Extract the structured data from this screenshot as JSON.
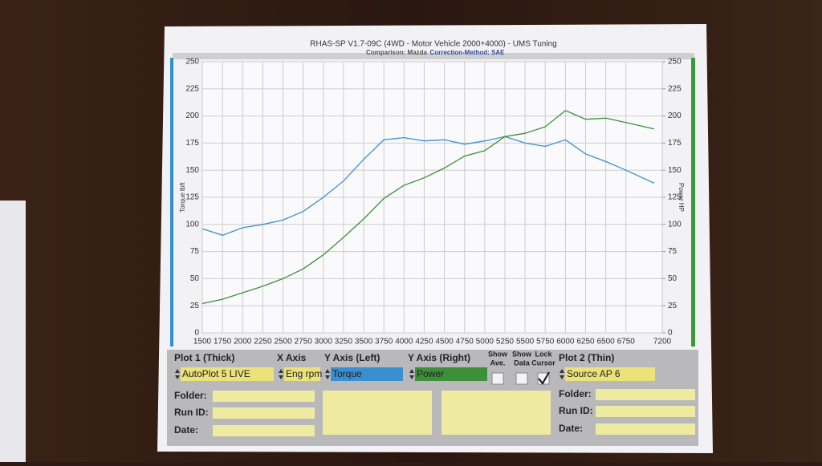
{
  "chart_data": {
    "type": "line",
    "title": "RHAS-SP V1.7-09C  (4WD - Motor Vehicle 2000+4000) - UMS Tuning",
    "annotations": [
      "Comparison: Mazda",
      "Correction-Method: SAE"
    ],
    "ylabel": "Torque lbft",
    "y2label": "Power HP",
    "x": [
      1500,
      1750,
      2000,
      2250,
      2500,
      2750,
      3000,
      3250,
      3500,
      3750,
      4000,
      4250,
      4500,
      4750,
      5000,
      5250,
      5500,
      5750,
      6000,
      6250,
      6500,
      6750,
      7100
    ],
    "series": [
      {
        "name": "Torque",
        "color": "#3a8fd0",
        "values": [
          96,
          90,
          97,
          100,
          104,
          112,
          125,
          140,
          160,
          178,
          180,
          177,
          178,
          174,
          177,
          181,
          175,
          172,
          178,
          165,
          158,
          150,
          138
        ]
      },
      {
        "name": "Power",
        "color": "#3d8f3a",
        "axis": "y2",
        "values": [
          27,
          31,
          37,
          43,
          50,
          59,
          72,
          88,
          105,
          124,
          136,
          143,
          152,
          163,
          168,
          181,
          184,
          190,
          205,
          197,
          198,
          194,
          188
        ]
      }
    ],
    "xlim": [
      1500,
      7200
    ],
    "xticks": [
      1500,
      1750,
      2000,
      2250,
      2500,
      2750,
      3000,
      3250,
      3500,
      3750,
      4000,
      4250,
      4500,
      4750,
      5000,
      5250,
      5500,
      5750,
      6000,
      6250,
      6500,
      6750,
      7200
    ],
    "ylim": [
      0,
      250
    ],
    "yticks": [
      0,
      25,
      50,
      75,
      100,
      125,
      150,
      175,
      200,
      225,
      250
    ],
    "y2lim": [
      0,
      250
    ],
    "y2ticks": [
      0,
      25,
      50,
      75,
      100,
      125,
      150,
      175,
      200,
      225,
      250
    ],
    "grid": true
  },
  "panel": {
    "headers": [
      "Plot 1 (Thick)",
      "X Axis",
      "Y Axis (Left)",
      "Y Axis (Right)",
      "Plot 2 (Thin)"
    ],
    "toggles": [
      [
        "Show",
        "Ave."
      ],
      [
        "Show",
        "Data"
      ],
      [
        "Lock",
        "Cursor"
      ]
    ],
    "fields": [
      "AutoPlot 5 LIVE",
      "Eng rpm",
      "Torque",
      "Power",
      "Source AP 6"
    ],
    "left_labels": [
      "Folder:",
      "Run ID:",
      "Date:"
    ],
    "right_labels": [
      "Folder:",
      "Run ID:",
      "Date:"
    ]
  }
}
